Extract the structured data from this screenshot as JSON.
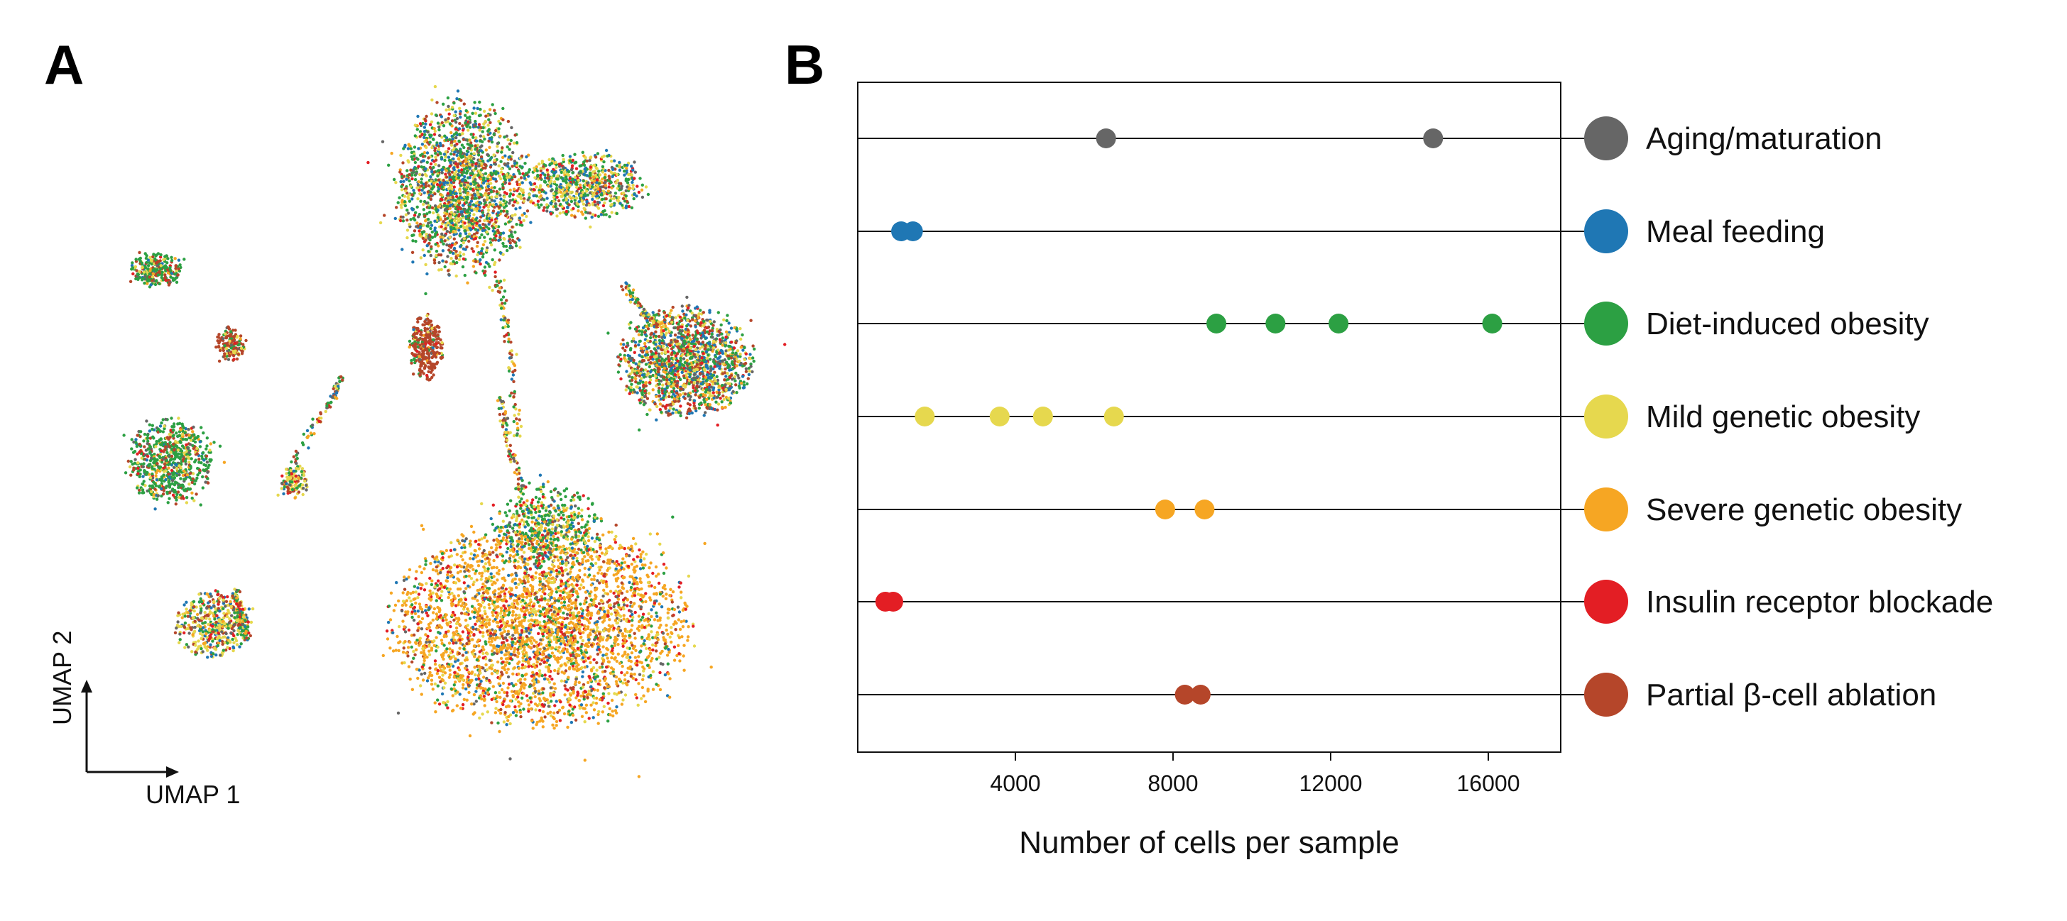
{
  "panel_a": {
    "letter": "A",
    "umap_xlabel": "UMAP 1",
    "umap_ylabel": "UMAP 2"
  },
  "panel_b": {
    "letter": "B"
  },
  "colors": {
    "Aging/maturation": "#666666",
    "Meal feeding": "#1f77b4",
    "Diet-induced obesity": "#2ca043",
    "Mild genetic obesity": "#e6d84e",
    "Severe genetic obesity": "#f6a623",
    "Insulin receptor blockade": "#e31e24",
    "Partial β-cell ablation": "#b5462a"
  },
  "chart_data": [
    {
      "type": "scatter",
      "panel": "A",
      "xlabel": "UMAP 1",
      "ylabel": "UMAP 2",
      "note_series_colors": [
        "Aging/maturation",
        "Meal feeding",
        "Diet-induced obesity",
        "Mild genetic obesity",
        "Severe genetic obesity",
        "Insulin receptor blockade",
        "Partial β-cell ablation"
      ]
    },
    {
      "type": "scatter",
      "panel": "B",
      "xlabel": "Number of cells per sample",
      "ylabel": "",
      "xlim": [
        0,
        17000
      ],
      "xticks": [
        4000,
        8000,
        12000,
        16000
      ],
      "xtick_labels": [
        "4000",
        "8000",
        "12000",
        "16000"
      ],
      "grid": false,
      "legend_placement": "right",
      "categories": [
        "Aging/maturation",
        "Meal feeding",
        "Diet-induced obesity",
        "Mild genetic obesity",
        "Severe genetic obesity",
        "Insulin receptor blockade",
        "Partial β-cell ablation"
      ],
      "series": [
        {
          "name": "Aging/maturation",
          "values": [
            6300,
            14600
          ]
        },
        {
          "name": "Meal feeding",
          "values": [
            1100,
            1400
          ]
        },
        {
          "name": "Diet-induced obesity",
          "values": [
            9100,
            10600,
            12200,
            16100
          ]
        },
        {
          "name": "Mild genetic obesity",
          "values": [
            1700,
            3600,
            4700,
            6500
          ]
        },
        {
          "name": "Severe genetic obesity",
          "values": [
            7800,
            8800
          ]
        },
        {
          "name": "Insulin receptor blockade",
          "values": [
            700,
            900
          ]
        },
        {
          "name": "Partial β-cell ablation",
          "values": [
            8300,
            8700
          ]
        }
      ]
    }
  ]
}
